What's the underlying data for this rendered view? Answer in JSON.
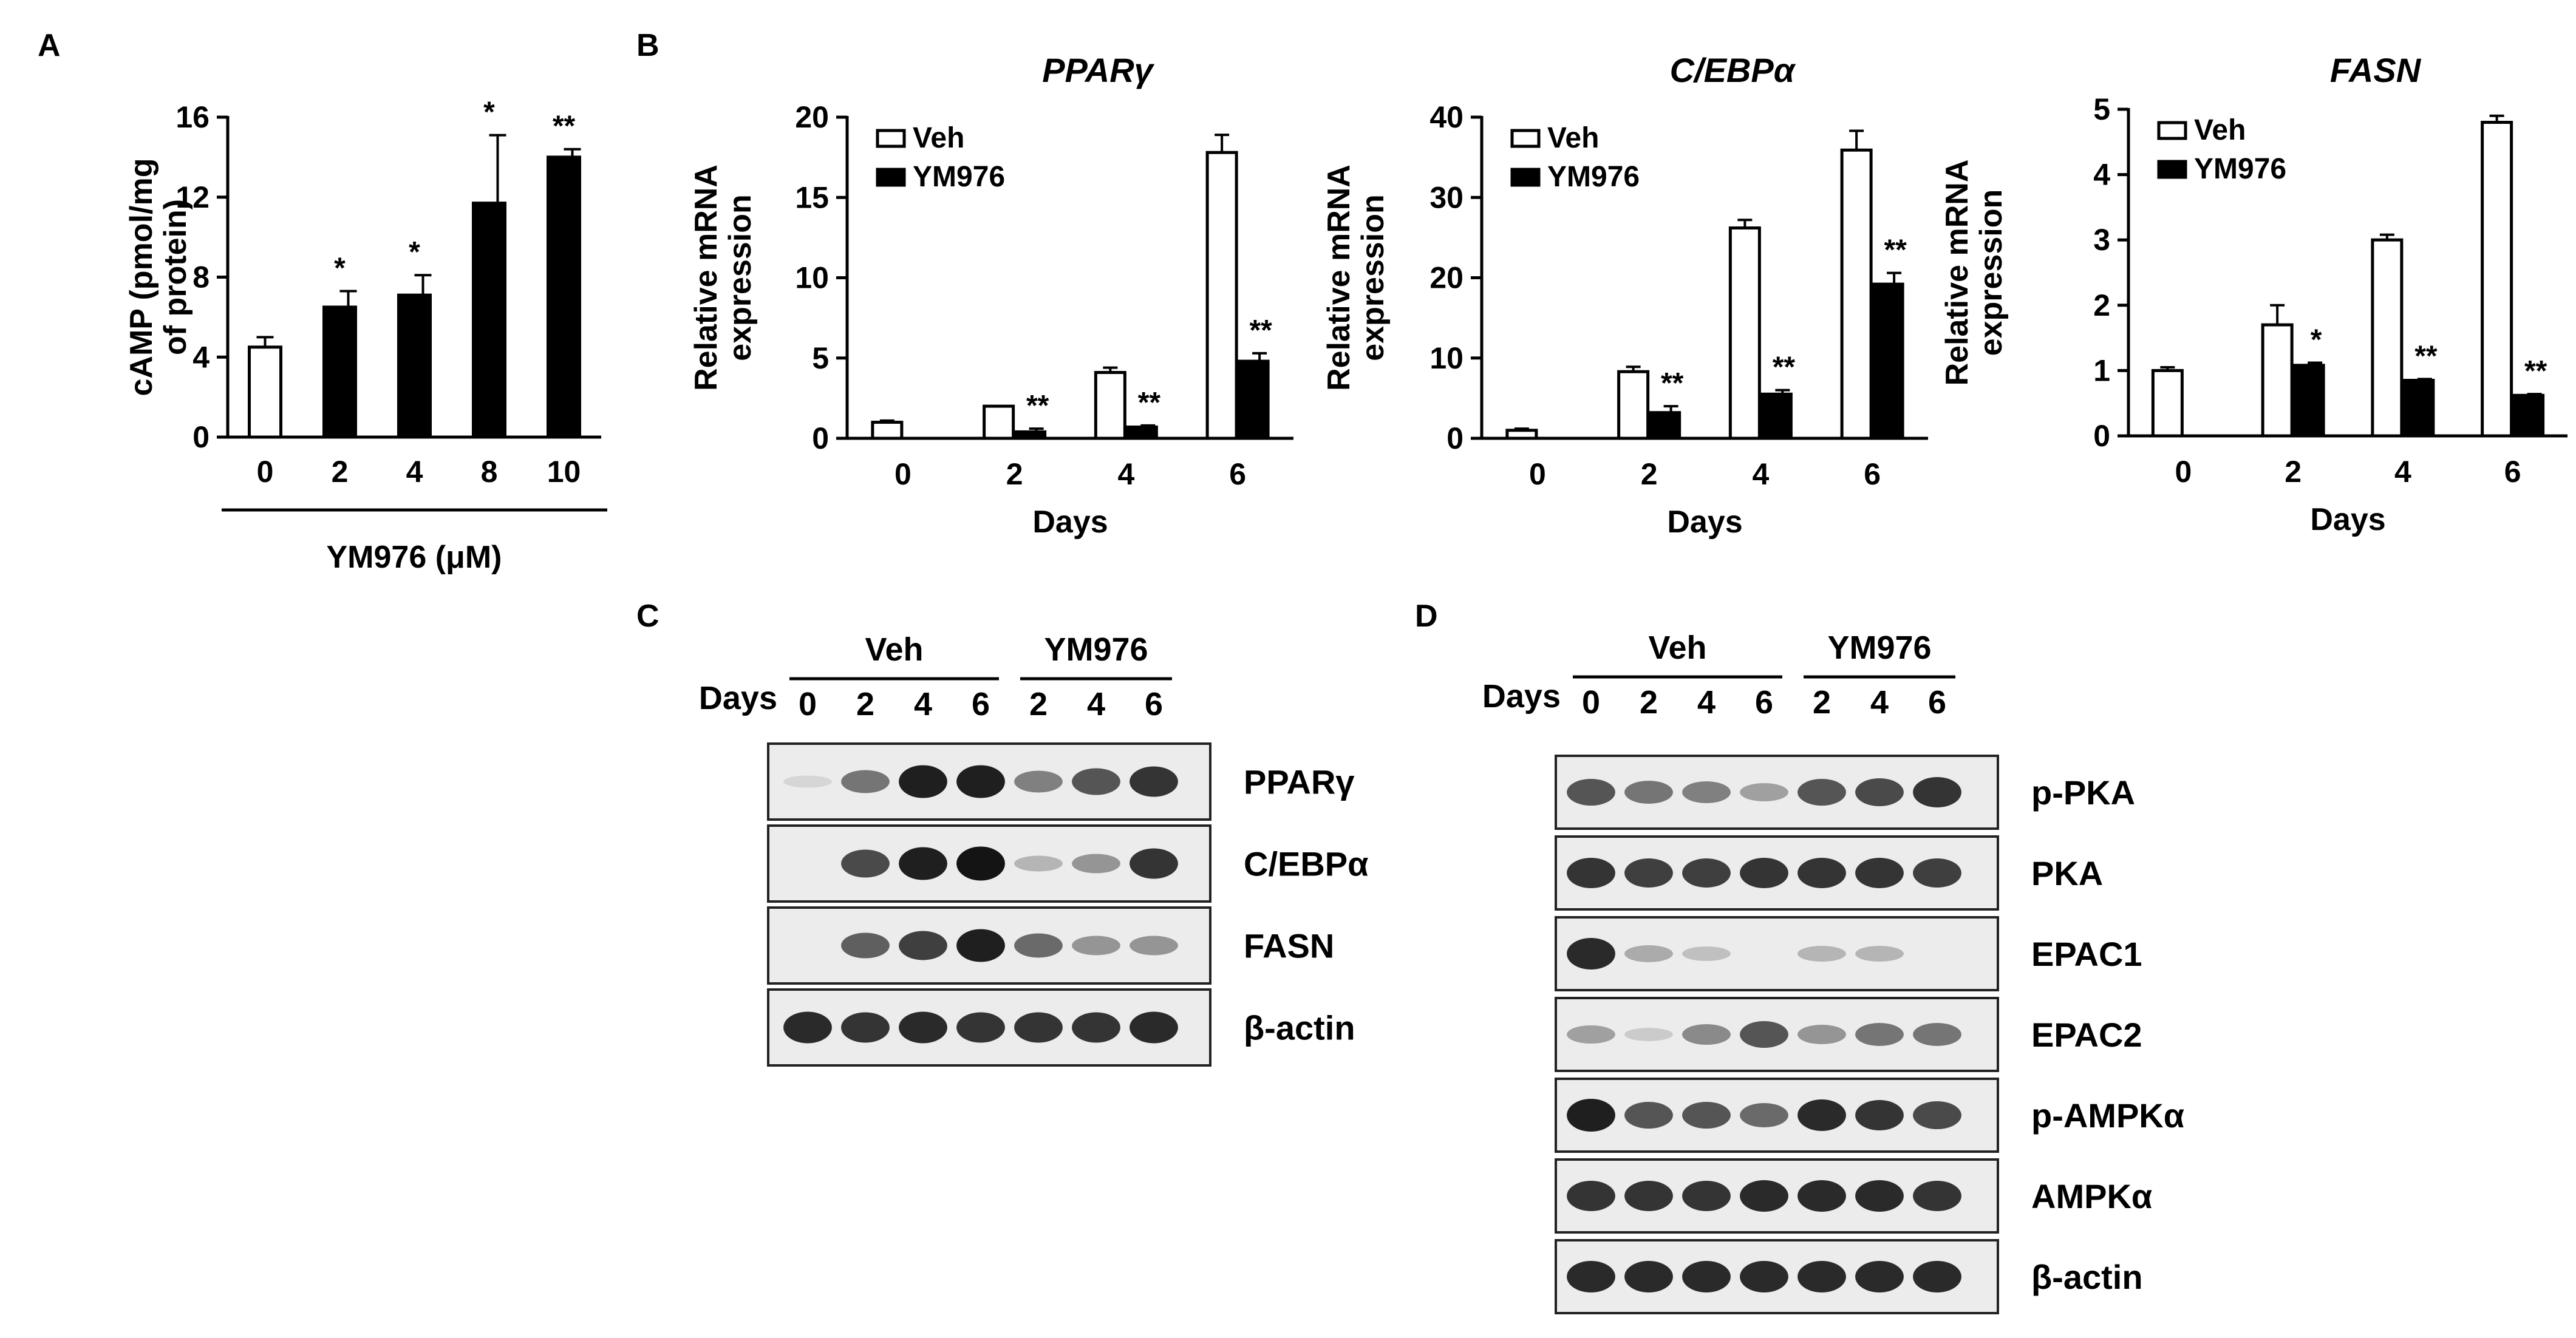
{
  "panel_letters": [
    "A",
    "B",
    "C",
    "D"
  ],
  "colors": {
    "veh": "#ffffff",
    "ym976": "#000000",
    "stroke": "#000000"
  },
  "chart_data": [
    {
      "panel": "A",
      "type": "bar",
      "title": "",
      "ylabel": "cAMP (pmol/mg of protein)",
      "ylabel_lines": [
        "cAMP (pmol/mg",
        "of protein)"
      ],
      "xlabel": "YM976 (μM)",
      "categories": [
        "0",
        "2",
        "4",
        "8",
        "10"
      ],
      "values": [
        4.5,
        6.5,
        7.1,
        11.7,
        14.0
      ],
      "errors": [
        0.5,
        0.8,
        1.0,
        3.4,
        0.4
      ],
      "fills": [
        "veh",
        "ym976",
        "ym976",
        "ym976",
        "ym976"
      ],
      "significance": [
        "",
        "*",
        "*",
        "*",
        "**"
      ],
      "ylim": [
        0,
        16
      ],
      "yticks": [
        0,
        4,
        8,
        12,
        16
      ],
      "grid": false,
      "legend": "none"
    },
    {
      "panel": "B",
      "type": "bar",
      "title": "PPARγ",
      "ylabel": "Relative mRNA expression",
      "ylabel_lines": [
        "Relative mRNA",
        "expression"
      ],
      "xlabel": "Days",
      "categories": [
        "0",
        "2",
        "4",
        "6"
      ],
      "series": [
        {
          "name": "Veh",
          "values": [
            1.0,
            2.0,
            4.1,
            17.8
          ],
          "errors": [
            0.1,
            0.0,
            0.3,
            1.1
          ]
        },
        {
          "name": "YM976",
          "values": [
            null,
            0.4,
            0.7,
            4.8
          ],
          "errors": [
            null,
            0.2,
            0.1,
            0.5
          ]
        }
      ],
      "significance": [
        "",
        "**",
        "**",
        "**"
      ],
      "ylim": [
        0,
        20
      ],
      "yticks": [
        0,
        5,
        10,
        15,
        20
      ],
      "grid": false,
      "legend": "top-left"
    },
    {
      "panel": "B",
      "type": "bar",
      "title": "C/EBPα",
      "ylabel": "Relative mRNA expression",
      "ylabel_lines": [
        "Relative mRNA",
        "expression"
      ],
      "xlabel": "Days",
      "categories": [
        "0",
        "2",
        "4",
        "6"
      ],
      "series": [
        {
          "name": "Veh",
          "values": [
            1.0,
            8.3,
            26.2,
            35.9
          ],
          "errors": [
            0.2,
            0.6,
            1.0,
            2.4
          ]
        },
        {
          "name": "YM976",
          "values": [
            null,
            3.2,
            5.5,
            19.2
          ],
          "errors": [
            null,
            0.8,
            0.5,
            1.4
          ]
        }
      ],
      "significance": [
        "",
        "**",
        "**",
        "**"
      ],
      "ylim": [
        0,
        40
      ],
      "yticks": [
        0,
        10,
        20,
        30,
        40
      ],
      "grid": false,
      "legend": "top-left"
    },
    {
      "panel": "B",
      "type": "bar",
      "title": "FASN",
      "ylabel": "Relative mRNA expression",
      "ylabel_lines": [
        "Relative mRNA",
        "expression"
      ],
      "xlabel": "Days",
      "categories": [
        "0",
        "2",
        "4",
        "6"
      ],
      "series": [
        {
          "name": "Veh",
          "values": [
            1.0,
            1.7,
            3.0,
            4.8
          ],
          "errors": [
            0.05,
            0.3,
            0.08,
            0.1
          ]
        },
        {
          "name": "YM976",
          "values": [
            null,
            1.08,
            0.85,
            0.62
          ],
          "errors": [
            null,
            0.04,
            0.02,
            0.02
          ]
        }
      ],
      "significance": [
        "",
        "*",
        "**",
        "**"
      ],
      "ylim": [
        0,
        5
      ],
      "yticks": [
        0,
        1,
        2,
        3,
        4,
        5
      ],
      "grid": false,
      "legend": "top-left"
    }
  ],
  "blots": [
    {
      "panel": "C",
      "group_labels": [
        "Veh",
        "YM976"
      ],
      "days_label": "Days",
      "lanes": [
        "0",
        "2",
        "4",
        "6",
        "2",
        "4",
        "6"
      ],
      "proteins": [
        {
          "name": "PPARγ",
          "intensity": [
            0.1,
            0.55,
            0.95,
            0.95,
            0.5,
            0.7,
            0.85
          ]
        },
        {
          "name": "C/EBPα",
          "intensity": [
            0.0,
            0.75,
            0.95,
            1.0,
            0.25,
            0.4,
            0.85
          ]
        },
        {
          "name": "FASN",
          "intensity": [
            0.0,
            0.65,
            0.8,
            0.95,
            0.6,
            0.4,
            0.4
          ]
        },
        {
          "name": "β-actin",
          "intensity": [
            0.9,
            0.85,
            0.9,
            0.85,
            0.85,
            0.85,
            0.9
          ]
        }
      ]
    },
    {
      "panel": "D",
      "group_labels": [
        "Veh",
        "YM976"
      ],
      "days_label": "Days",
      "lanes": [
        "0",
        "2",
        "4",
        "6",
        "2",
        "4",
        "6"
      ],
      "proteins": [
        {
          "name": "p-PKA",
          "intensity": [
            0.7,
            0.55,
            0.5,
            0.35,
            0.7,
            0.75,
            0.85
          ]
        },
        {
          "name": "PKA",
          "intensity": [
            0.85,
            0.8,
            0.8,
            0.85,
            0.85,
            0.85,
            0.8
          ]
        },
        {
          "name": "EPAC1",
          "intensity": [
            0.9,
            0.3,
            0.2,
            0.0,
            0.25,
            0.25,
            0.0
          ]
        },
        {
          "name": "EPAC2",
          "intensity": [
            0.35,
            0.15,
            0.45,
            0.7,
            0.4,
            0.55,
            0.55
          ]
        },
        {
          "name": "p-AMPKα",
          "intensity": [
            0.95,
            0.7,
            0.7,
            0.6,
            0.9,
            0.85,
            0.75
          ]
        },
        {
          "name": "AMPKα",
          "intensity": [
            0.85,
            0.85,
            0.85,
            0.9,
            0.9,
            0.9,
            0.85
          ]
        },
        {
          "name": "β-actin",
          "intensity": [
            0.9,
            0.9,
            0.9,
            0.9,
            0.9,
            0.9,
            0.9
          ]
        }
      ]
    }
  ]
}
